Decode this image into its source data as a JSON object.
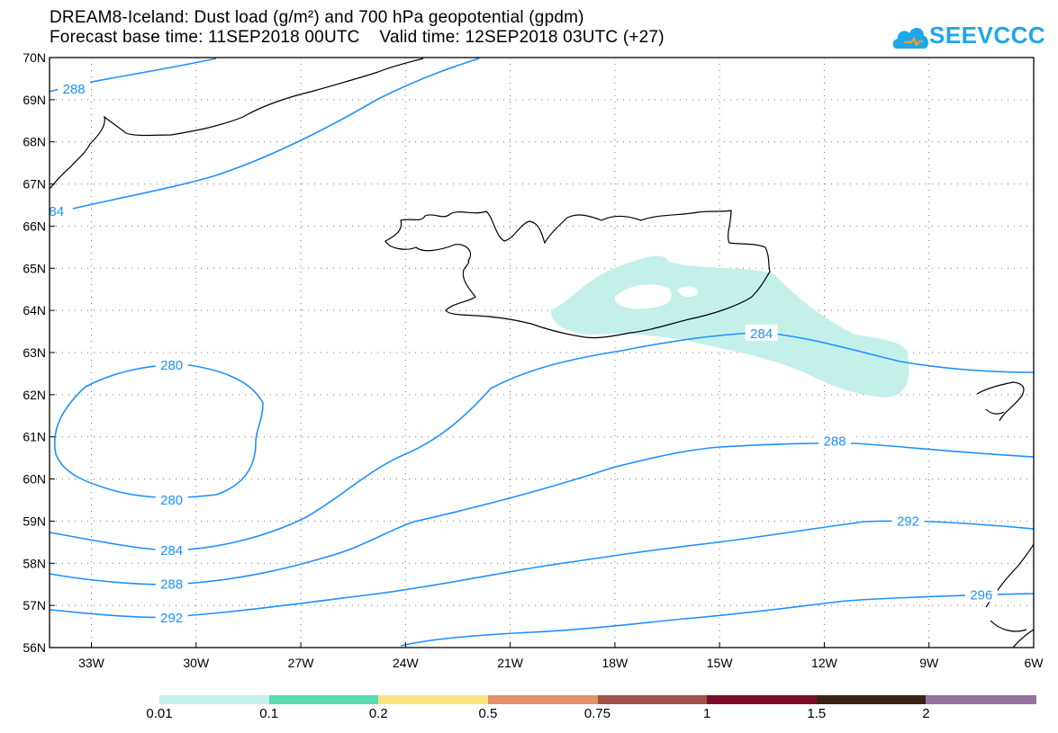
{
  "title_line1": "DREAM8-Iceland: Dust load (g/m²) and 700 hPa geopotential (gpdm)",
  "title_line2": "Forecast base time: 11SEP2018 00UTC    Valid time: 12SEP2018 03UTC (+27)",
  "logo": {
    "text": "SEEVCCC",
    "icon": "cloud-icon"
  },
  "map": {
    "lon_range": [
      -34.2,
      -6
    ],
    "lat_range": [
      56,
      70
    ],
    "grid": true,
    "lat_labels": [
      "70N",
      "69N",
      "68N",
      "67N",
      "66N",
      "65N",
      "64N",
      "63N",
      "62N",
      "61N",
      "60N",
      "59N",
      "58N",
      "57N",
      "56N"
    ],
    "lat_values": [
      70,
      69,
      68,
      67,
      66,
      65,
      64,
      63,
      62,
      61,
      60,
      59,
      58,
      57,
      56
    ],
    "lon_labels": [
      "33W",
      "30W",
      "27W",
      "24W",
      "21W",
      "18W",
      "15W",
      "12W",
      "9W",
      "6W"
    ],
    "lon_values": [
      -33,
      -30,
      -27,
      -24,
      -21,
      -18,
      -15,
      -12,
      -9,
      -6
    ],
    "contour_color": "#1e90ff",
    "contour_labels": [
      {
        "text": "288",
        "lon": -33.5,
        "lat": 69.25
      },
      {
        "text": "84",
        "lon": -34.0,
        "lat": 66.35
      },
      {
        "text": "280",
        "lon": -30.7,
        "lat": 62.7
      },
      {
        "text": "280",
        "lon": -30.7,
        "lat": 59.5
      },
      {
        "text": "284",
        "lon": -30.7,
        "lat": 58.3
      },
      {
        "text": "288",
        "lon": -30.7,
        "lat": 57.5
      },
      {
        "text": "292",
        "lon": -30.7,
        "lat": 56.7
      },
      {
        "text": "284",
        "lon": -13.8,
        "lat": 63.45
      },
      {
        "text": "288",
        "lon": -11.7,
        "lat": 60.9
      },
      {
        "text": "292",
        "lon": -9.6,
        "lat": 59.0
      },
      {
        "text": "296",
        "lon": -7.5,
        "lat": 57.25
      }
    ],
    "dust_color": "#c4f0ea"
  },
  "colorbar": {
    "colors": [
      "#c4f0ea",
      "#55dcb1",
      "#f7e27c",
      "#e5916a",
      "#a25148",
      "#7d0c2a",
      "#3a2314",
      "#96739e"
    ],
    "labels": [
      "0.01",
      "0.1",
      "0.2",
      "0.5",
      "0.75",
      "1",
      "1.5",
      "2"
    ]
  }
}
